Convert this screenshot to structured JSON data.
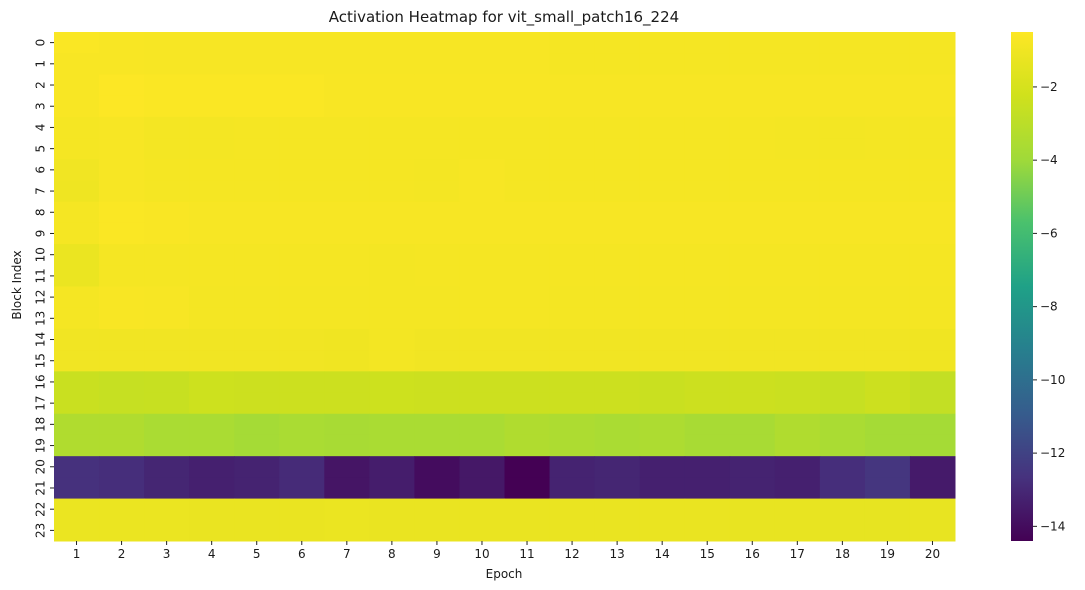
{
  "chart_data": {
    "type": "heatmap",
    "title": "Activation Heatmap for vit_small_patch16_224",
    "xlabel": "Epoch",
    "ylabel": "Block Index",
    "x": [
      "1",
      "2",
      "3",
      "4",
      "5",
      "6",
      "7",
      "8",
      "9",
      "10",
      "11",
      "12",
      "13",
      "14",
      "15",
      "16",
      "17",
      "18",
      "19",
      "20"
    ],
    "y": [
      "0",
      "1",
      "2",
      "3",
      "4",
      "5",
      "6",
      "7",
      "8",
      "9",
      "10",
      "11",
      "12",
      "13",
      "14",
      "15",
      "16",
      "17",
      "18",
      "19",
      "20",
      "21",
      "22",
      "23"
    ],
    "colormap": "viridis",
    "vmin": -14.4,
    "vmax": -0.5,
    "colorbar_ticks": [
      -2,
      -4,
      -6,
      -8,
      -10,
      -12,
      -14
    ],
    "colorbar_tick_labels": [
      "−2",
      "−4",
      "−6",
      "−8",
      "−10",
      "−12",
      "−14"
    ],
    "values": [
      [
        -0.6,
        -0.7,
        -0.75,
        -0.75,
        -0.75,
        -0.75,
        -0.75,
        -0.75,
        -0.75,
        -0.75,
        -0.75,
        -0.8,
        -0.8,
        -0.8,
        -0.8,
        -0.8,
        -0.8,
        -0.8,
        -0.8,
        -0.8
      ],
      [
        -0.7,
        -0.7,
        -0.75,
        -0.75,
        -0.75,
        -0.75,
        -0.75,
        -0.75,
        -0.75,
        -0.75,
        -0.75,
        -0.8,
        -0.8,
        -0.8,
        -0.8,
        -0.8,
        -0.8,
        -0.8,
        -0.8,
        -0.8
      ],
      [
        -0.7,
        -0.55,
        -0.6,
        -0.6,
        -0.6,
        -0.6,
        -0.7,
        -0.7,
        -0.7,
        -0.7,
        -0.7,
        -0.75,
        -0.75,
        -0.75,
        -0.75,
        -0.75,
        -0.75,
        -0.75,
        -0.75,
        -0.75
      ],
      [
        -0.7,
        -0.55,
        -0.6,
        -0.6,
        -0.6,
        -0.6,
        -0.7,
        -0.7,
        -0.7,
        -0.7,
        -0.7,
        -0.75,
        -0.75,
        -0.75,
        -0.75,
        -0.75,
        -0.75,
        -0.75,
        -0.75,
        -0.75
      ],
      [
        -0.8,
        -0.75,
        -0.85,
        -0.85,
        -0.8,
        -0.8,
        -0.8,
        -0.8,
        -0.8,
        -0.8,
        -0.8,
        -0.8,
        -0.8,
        -0.8,
        -0.8,
        -0.8,
        -0.85,
        -0.9,
        -0.85,
        -0.85
      ],
      [
        -0.8,
        -0.75,
        -0.85,
        -0.85,
        -0.8,
        -0.8,
        -0.8,
        -0.8,
        -0.8,
        -0.8,
        -0.8,
        -0.8,
        -0.8,
        -0.8,
        -0.8,
        -0.8,
        -0.85,
        -0.9,
        -0.85,
        -0.85
      ],
      [
        -0.95,
        -0.75,
        -0.8,
        -0.8,
        -0.8,
        -0.8,
        -0.8,
        -0.8,
        -0.85,
        -0.75,
        -0.8,
        -0.8,
        -0.8,
        -0.8,
        -0.8,
        -0.8,
        -0.8,
        -0.8,
        -0.8,
        -0.8
      ],
      [
        -1.05,
        -0.75,
        -0.8,
        -0.8,
        -0.8,
        -0.8,
        -0.8,
        -0.8,
        -0.85,
        -0.75,
        -0.8,
        -0.8,
        -0.8,
        -0.8,
        -0.8,
        -0.8,
        -0.8,
        -0.8,
        -0.8,
        -0.8
      ],
      [
        -0.8,
        -0.6,
        -0.65,
        -0.75,
        -0.75,
        -0.75,
        -0.75,
        -0.75,
        -0.75,
        -0.75,
        -0.75,
        -0.75,
        -0.75,
        -0.75,
        -0.75,
        -0.75,
        -0.75,
        -0.75,
        -0.75,
        -0.75
      ],
      [
        -0.8,
        -0.6,
        -0.65,
        -0.75,
        -0.75,
        -0.75,
        -0.75,
        -0.75,
        -0.75,
        -0.75,
        -0.75,
        -0.75,
        -0.75,
        -0.75,
        -0.75,
        -0.75,
        -0.75,
        -0.75,
        -0.75,
        -0.75
      ],
      [
        -1.2,
        -0.8,
        -0.8,
        -0.8,
        -0.8,
        -0.8,
        -0.8,
        -0.85,
        -0.8,
        -0.8,
        -0.8,
        -0.8,
        -0.8,
        -0.8,
        -0.8,
        -0.8,
        -0.8,
        -0.8,
        -0.8,
        -0.8
      ],
      [
        -1.2,
        -0.8,
        -0.8,
        -0.8,
        -0.8,
        -0.8,
        -0.8,
        -0.85,
        -0.8,
        -0.8,
        -0.8,
        -0.8,
        -0.8,
        -0.8,
        -0.8,
        -0.8,
        -0.8,
        -0.8,
        -0.8,
        -0.8
      ],
      [
        -0.8,
        -0.7,
        -0.75,
        -0.85,
        -0.85,
        -0.85,
        -0.85,
        -0.85,
        -0.85,
        -0.8,
        -0.8,
        -0.85,
        -0.85,
        -0.85,
        -0.85,
        -0.85,
        -0.85,
        -0.85,
        -0.85,
        -0.85
      ],
      [
        -0.8,
        -0.7,
        -0.75,
        -0.85,
        -0.85,
        -0.85,
        -0.85,
        -0.85,
        -0.85,
        -0.8,
        -0.8,
        -0.85,
        -0.85,
        -0.85,
        -0.85,
        -0.85,
        -0.85,
        -0.85,
        -0.85,
        -0.85
      ],
      [
        -0.95,
        -0.95,
        -0.95,
        -0.95,
        -0.95,
        -0.95,
        -1.0,
        -0.9,
        -0.95,
        -0.95,
        -0.95,
        -0.95,
        -0.95,
        -0.95,
        -0.95,
        -0.95,
        -0.95,
        -0.95,
        -0.95,
        -1.0
      ],
      [
        -0.95,
        -0.95,
        -0.95,
        -0.95,
        -0.95,
        -0.95,
        -1.0,
        -0.9,
        -0.95,
        -0.95,
        -0.95,
        -0.95,
        -0.95,
        -0.95,
        -0.95,
        -0.95,
        -0.95,
        -0.95,
        -0.95,
        -1.0
      ],
      [
        -2.5,
        -2.6,
        -2.55,
        -2.35,
        -2.4,
        -2.4,
        -2.4,
        -2.35,
        -2.4,
        -2.4,
        -2.4,
        -2.4,
        -2.4,
        -2.5,
        -2.4,
        -2.4,
        -2.45,
        -2.6,
        -2.4,
        -2.7
      ],
      [
        -2.5,
        -2.6,
        -2.55,
        -2.35,
        -2.4,
        -2.4,
        -2.4,
        -2.35,
        -2.4,
        -2.4,
        -2.4,
        -2.4,
        -2.4,
        -2.5,
        -2.4,
        -2.4,
        -2.45,
        -2.6,
        -2.4,
        -2.7
      ],
      [
        -3.4,
        -3.4,
        -3.6,
        -3.6,
        -3.8,
        -3.6,
        -3.7,
        -3.6,
        -3.6,
        -3.6,
        -3.4,
        -3.5,
        -3.6,
        -3.5,
        -3.7,
        -3.7,
        -3.4,
        -3.6,
        -3.8,
        -3.8
      ],
      [
        -3.4,
        -3.4,
        -3.6,
        -3.6,
        -3.8,
        -3.6,
        -3.7,
        -3.6,
        -3.6,
        -3.6,
        -3.4,
        -3.5,
        -3.6,
        -3.5,
        -3.7,
        -3.7,
        -3.4,
        -3.6,
        -3.8,
        -3.8
      ],
      [
        -12.7,
        -12.8,
        -13.1,
        -13.3,
        -13.2,
        -12.9,
        -13.7,
        -13.4,
        -14.0,
        -13.6,
        -14.4,
        -13.2,
        -13.1,
        -13.3,
        -13.3,
        -13.2,
        -13.3,
        -12.8,
        -12.5,
        -13.5
      ],
      [
        -12.7,
        -12.8,
        -13.1,
        -13.3,
        -13.2,
        -12.9,
        -13.7,
        -13.4,
        -14.0,
        -13.6,
        -14.4,
        -13.2,
        -13.1,
        -13.3,
        -13.3,
        -13.2,
        -13.3,
        -12.8,
        -12.5,
        -13.5
      ],
      [
        -1.2,
        -1.2,
        -1.2,
        -1.25,
        -1.25,
        -1.25,
        -1.2,
        -1.25,
        -1.25,
        -1.25,
        -1.25,
        -1.25,
        -1.25,
        -1.25,
        -1.25,
        -1.3,
        -1.3,
        -1.35,
        -1.35,
        -1.3
      ],
      [
        -1.2,
        -1.2,
        -1.2,
        -1.25,
        -1.25,
        -1.25,
        -1.2,
        -1.25,
        -1.25,
        -1.25,
        -1.25,
        -1.25,
        -1.25,
        -1.25,
        -1.25,
        -1.3,
        -1.3,
        -1.35,
        -1.35,
        -1.3
      ]
    ]
  }
}
